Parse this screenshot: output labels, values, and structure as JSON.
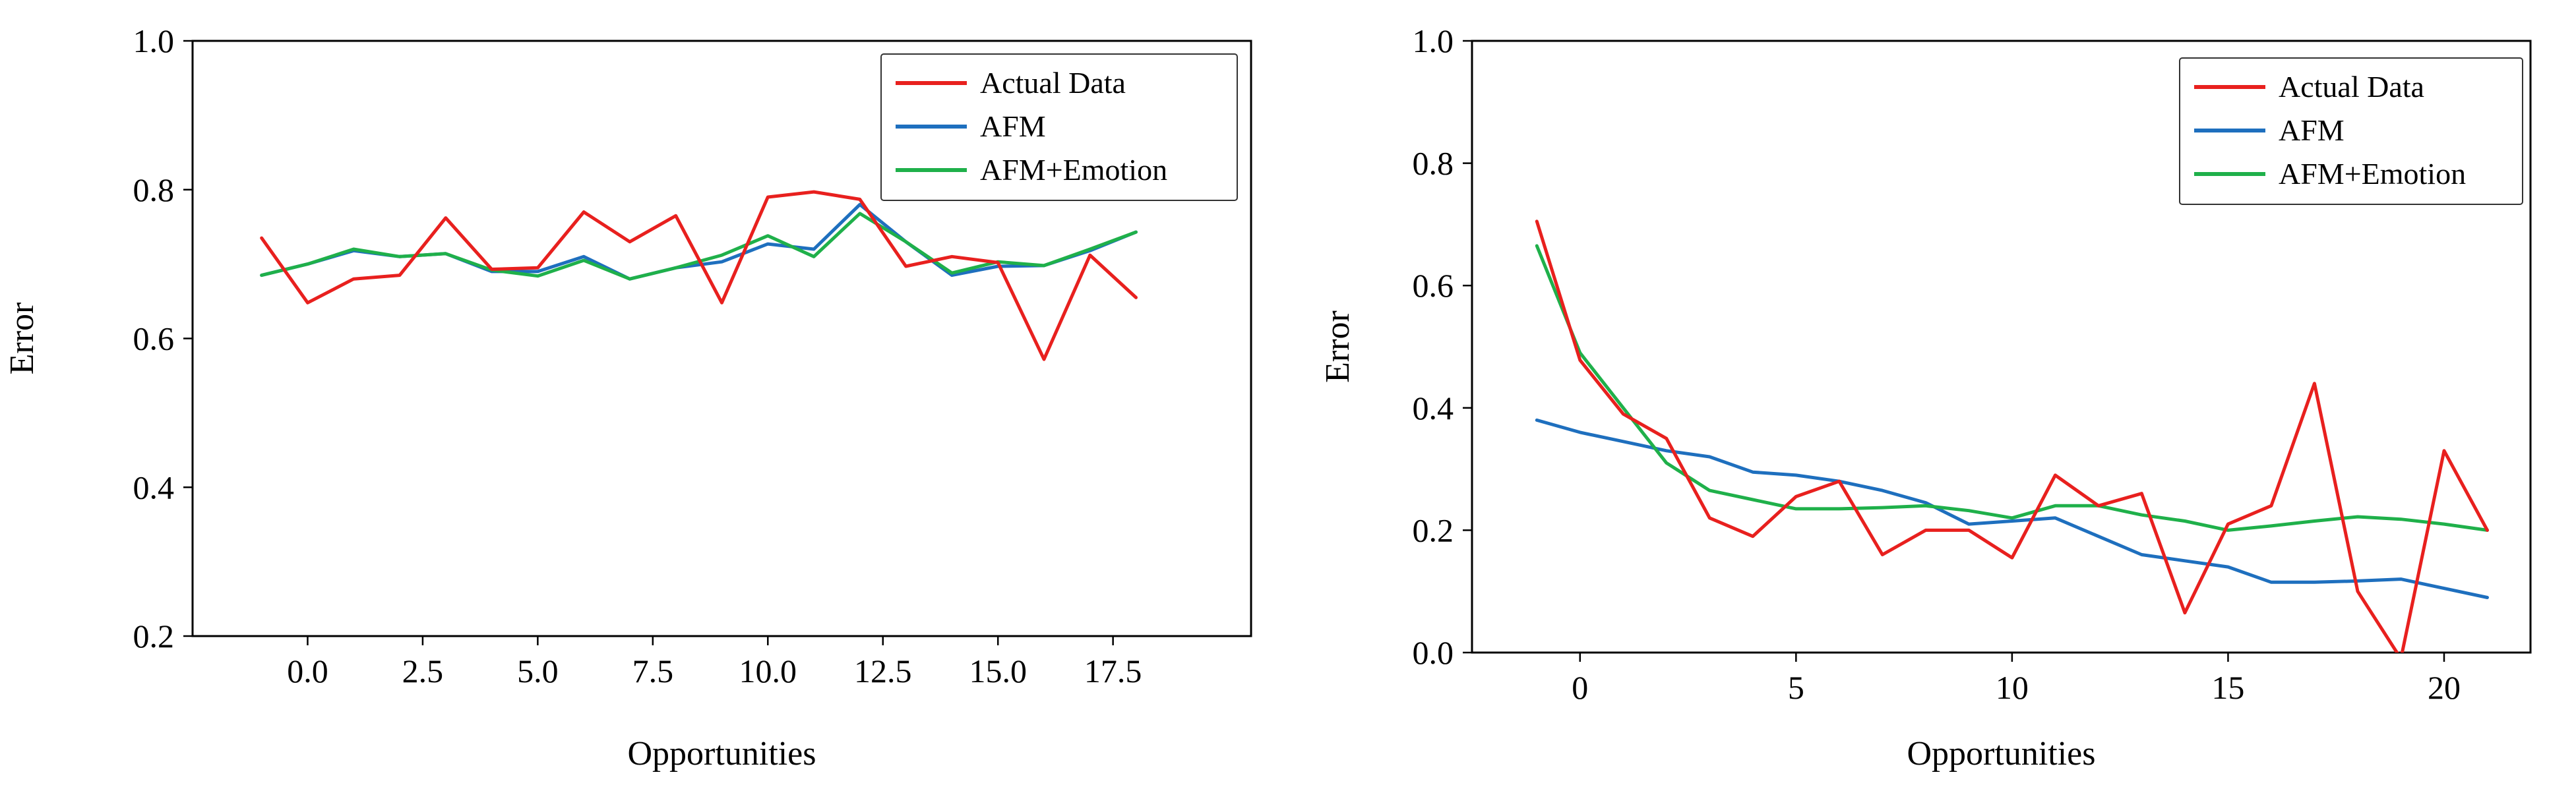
{
  "chart_data": [
    {
      "type": "line",
      "title": "",
      "xlabel": "Opportunities",
      "ylabel": "Error",
      "xlim": [
        -2.5,
        20.5
      ],
      "ylim": [
        0.2,
        1.0
      ],
      "xticks": [
        0.0,
        2.5,
        5.0,
        7.5,
        10.0,
        12.5,
        15.0,
        17.5
      ],
      "xtick_labels": [
        "0.0",
        "2.5",
        "5.0",
        "7.5",
        "10.0",
        "12.5",
        "15.0",
        "17.5"
      ],
      "yticks": [
        0.2,
        0.4,
        0.6,
        0.8,
        1.0
      ],
      "ytick_labels": [
        "0.2",
        "0.4",
        "0.6",
        "0.8",
        "1.0"
      ],
      "legend_position": "top-right",
      "series": [
        {
          "name": "Actual Data",
          "color": "#e8201e",
          "x": [
            -1.0,
            -0.0,
            1.0,
            2.0,
            3.0,
            4.0,
            5.0,
            6.0,
            7.0,
            8.0,
            9.0,
            10.0,
            11.0,
            12.0,
            13.0,
            14.0,
            15.0,
            16.0,
            17.0,
            18.0,
            19.0
          ],
          "y": [
            0.735,
            0.648,
            0.68,
            0.685,
            0.762,
            0.693,
            0.695,
            0.77,
            0.73,
            0.765,
            0.648,
            0.79,
            0.797,
            0.787,
            0.697,
            0.71,
            0.702,
            0.572,
            0.712,
            0.655,
            null
          ]
        },
        {
          "name": "AFM",
          "color": "#1e6fbe",
          "x": [
            -1.0,
            -0.0,
            1.0,
            2.0,
            3.0,
            4.0,
            5.0,
            6.0,
            7.0,
            8.0,
            9.0,
            10.0,
            11.0,
            12.0,
            13.0,
            14.0,
            15.0,
            16.0,
            17.0,
            18.0,
            19.0
          ],
          "y": [
            0.685,
            0.7,
            0.718,
            0.71,
            0.714,
            0.69,
            0.69,
            0.71,
            0.68,
            0.695,
            0.703,
            0.727,
            0.72,
            0.78,
            0.73,
            0.685,
            0.697,
            0.698,
            0.718,
            0.743,
            null
          ]
        },
        {
          "name": "AFM+Emotion",
          "color": "#1fb04a",
          "x": [
            -1.0,
            -0.0,
            1.0,
            2.0,
            3.0,
            4.0,
            5.0,
            6.0,
            7.0,
            8.0,
            9.0,
            10.0,
            11.0,
            12.0,
            13.0,
            14.0,
            15.0,
            16.0,
            17.0,
            18.0,
            19.0
          ],
          "y": [
            0.685,
            0.7,
            0.72,
            0.71,
            0.714,
            0.692,
            0.684,
            0.705,
            0.68,
            0.695,
            0.712,
            0.738,
            0.71,
            0.768,
            0.73,
            0.688,
            0.703,
            0.698,
            0.72,
            0.743,
            null
          ]
        }
      ]
    },
    {
      "type": "line",
      "title": "",
      "xlabel": "Opportunities",
      "ylabel": "Error",
      "xlim": [
        -2.5,
        22.0
      ],
      "ylim": [
        0.0,
        1.0
      ],
      "xticks": [
        0,
        5,
        10,
        15,
        20
      ],
      "xtick_labels": [
        "0",
        "5",
        "10",
        "15",
        "20"
      ],
      "yticks": [
        0.0,
        0.2,
        0.4,
        0.6,
        0.8,
        1.0
      ],
      "ytick_labels": [
        "0.0",
        "0.2",
        "0.4",
        "0.6",
        "0.8",
        "1.0"
      ],
      "legend_position": "top-right",
      "series": [
        {
          "name": "Actual Data",
          "color": "#e8201e",
          "x": [
            -1,
            0,
            1,
            2,
            3,
            4,
            5,
            6,
            7,
            8,
            9,
            10,
            11,
            12,
            13,
            14,
            15,
            16,
            17,
            18,
            19,
            20,
            21
          ],
          "y": [
            0.705,
            0.478,
            0.39,
            0.35,
            0.22,
            0.19,
            0.255,
            0.28,
            0.16,
            0.2,
            0.2,
            0.155,
            0.29,
            0.24,
            0.26,
            0.065,
            0.21,
            0.24,
            0.44,
            0.1,
            -0.01,
            0.33,
            0.2
          ]
        },
        {
          "name": "AFM",
          "color": "#1e6fbe",
          "x": [
            -1,
            0,
            1,
            2,
            3,
            4,
            5,
            6,
            7,
            8,
            9,
            10,
            11,
            12,
            13,
            14,
            15,
            16,
            17,
            18,
            19,
            20,
            21
          ],
          "y": [
            0.38,
            0.36,
            0.345,
            0.33,
            0.32,
            0.295,
            0.29,
            0.28,
            0.265,
            0.245,
            0.21,
            0.215,
            0.22,
            0.19,
            0.16,
            0.15,
            0.14,
            0.115,
            0.115,
            0.117,
            0.12,
            0.105,
            0.09
          ]
        },
        {
          "name": "AFM+Emotion",
          "color": "#1fb04a",
          "x": [
            -1,
            0,
            1,
            2,
            3,
            4,
            5,
            6,
            7,
            8,
            9,
            10,
            11,
            12,
            13,
            14,
            15,
            16,
            17,
            18,
            19,
            20,
            21
          ],
          "y": [
            0.665,
            0.49,
            0.4,
            0.31,
            0.265,
            0.25,
            0.235,
            0.235,
            0.237,
            0.24,
            0.232,
            0.22,
            0.24,
            0.24,
            0.225,
            0.215,
            0.2,
            0.207,
            0.215,
            0.222,
            0.218,
            0.21,
            0.2
          ]
        }
      ]
    }
  ]
}
